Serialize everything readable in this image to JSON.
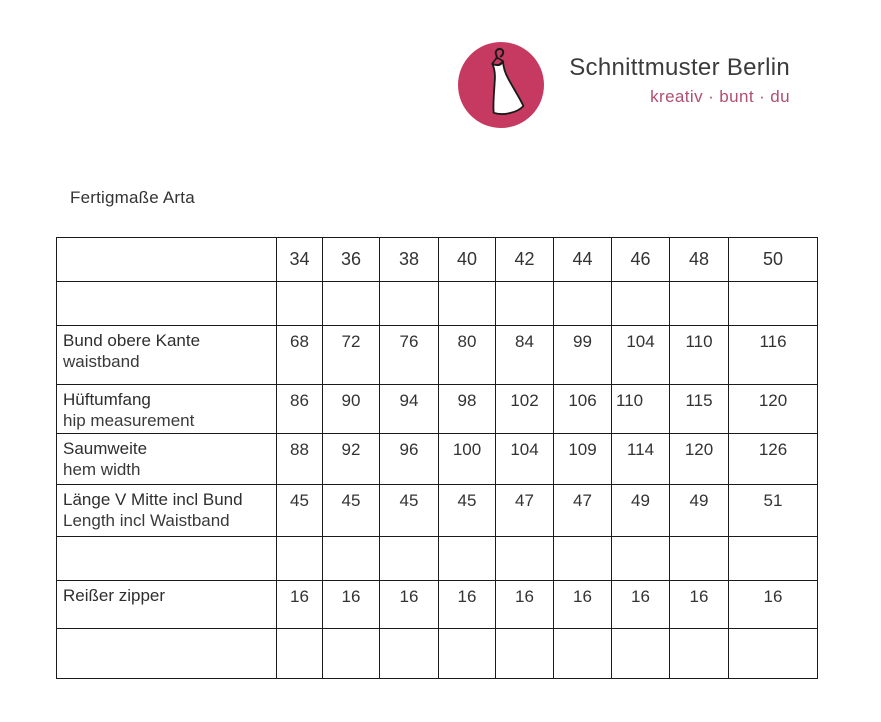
{
  "brand": {
    "name": "Schnittmuster Berlin",
    "tagline": "kreativ · bunt · du",
    "logo_icon": "dress-on-hanger-icon",
    "colors": {
      "circle": "#c63a62",
      "dress": "#ffffff",
      "outline": "#1a1a1a",
      "tagline": "#b04f70",
      "name_text": "#3b3b3b"
    }
  },
  "title": "Fertigmaße Arta",
  "colors": {
    "background": "#ffffff",
    "text": "#333333",
    "table_border": "#1b1b1b"
  },
  "table": {
    "sizes": [
      "34",
      "36",
      "38",
      "40",
      "42",
      "44",
      "46",
      "48",
      "50"
    ],
    "rows": [
      {
        "label_de": "",
        "label_en": "",
        "values": [
          "",
          "",
          "",
          "",
          "",
          "",
          "",
          "",
          ""
        ]
      },
      {
        "label_de": "Bund obere Kante",
        "label_en": "waistband",
        "values": [
          "68",
          "72",
          "76",
          "80",
          "84",
          "99",
          "104",
          "110",
          "116"
        ]
      },
      {
        "label_de": "Hüftumfang",
        "label_en": "hip measurement",
        "values": [
          "86",
          "90",
          "94",
          "98",
          "102",
          "106",
          "110",
          "115",
          "120"
        ],
        "left_align_cols": [
          6
        ]
      },
      {
        "label_de": "Saumweite",
        "label_en": "hem width",
        "values": [
          "88",
          "92",
          "96",
          "100",
          "104",
          "109",
          "114",
          "120",
          "126"
        ]
      },
      {
        "label_de": "Länge V Mitte incl Bund",
        "label_en": "Length incl Waistband",
        "values": [
          "45",
          "45",
          "45",
          "45",
          "47",
          "47",
          "49",
          "49",
          "51"
        ]
      },
      {
        "label_de": "",
        "label_en": "",
        "values": [
          "",
          "",
          "",
          "",
          "",
          "",
          "",
          "",
          ""
        ]
      },
      {
        "label_de": "Reißer zipper",
        "label_en": "",
        "values": [
          "16",
          "16",
          "16",
          "16",
          "16",
          "16",
          "16",
          "16",
          "16"
        ]
      },
      {
        "label_de": "",
        "label_en": "",
        "values": [
          "",
          "",
          "",
          "",
          "",
          "",
          "",
          "",
          ""
        ]
      }
    ]
  }
}
